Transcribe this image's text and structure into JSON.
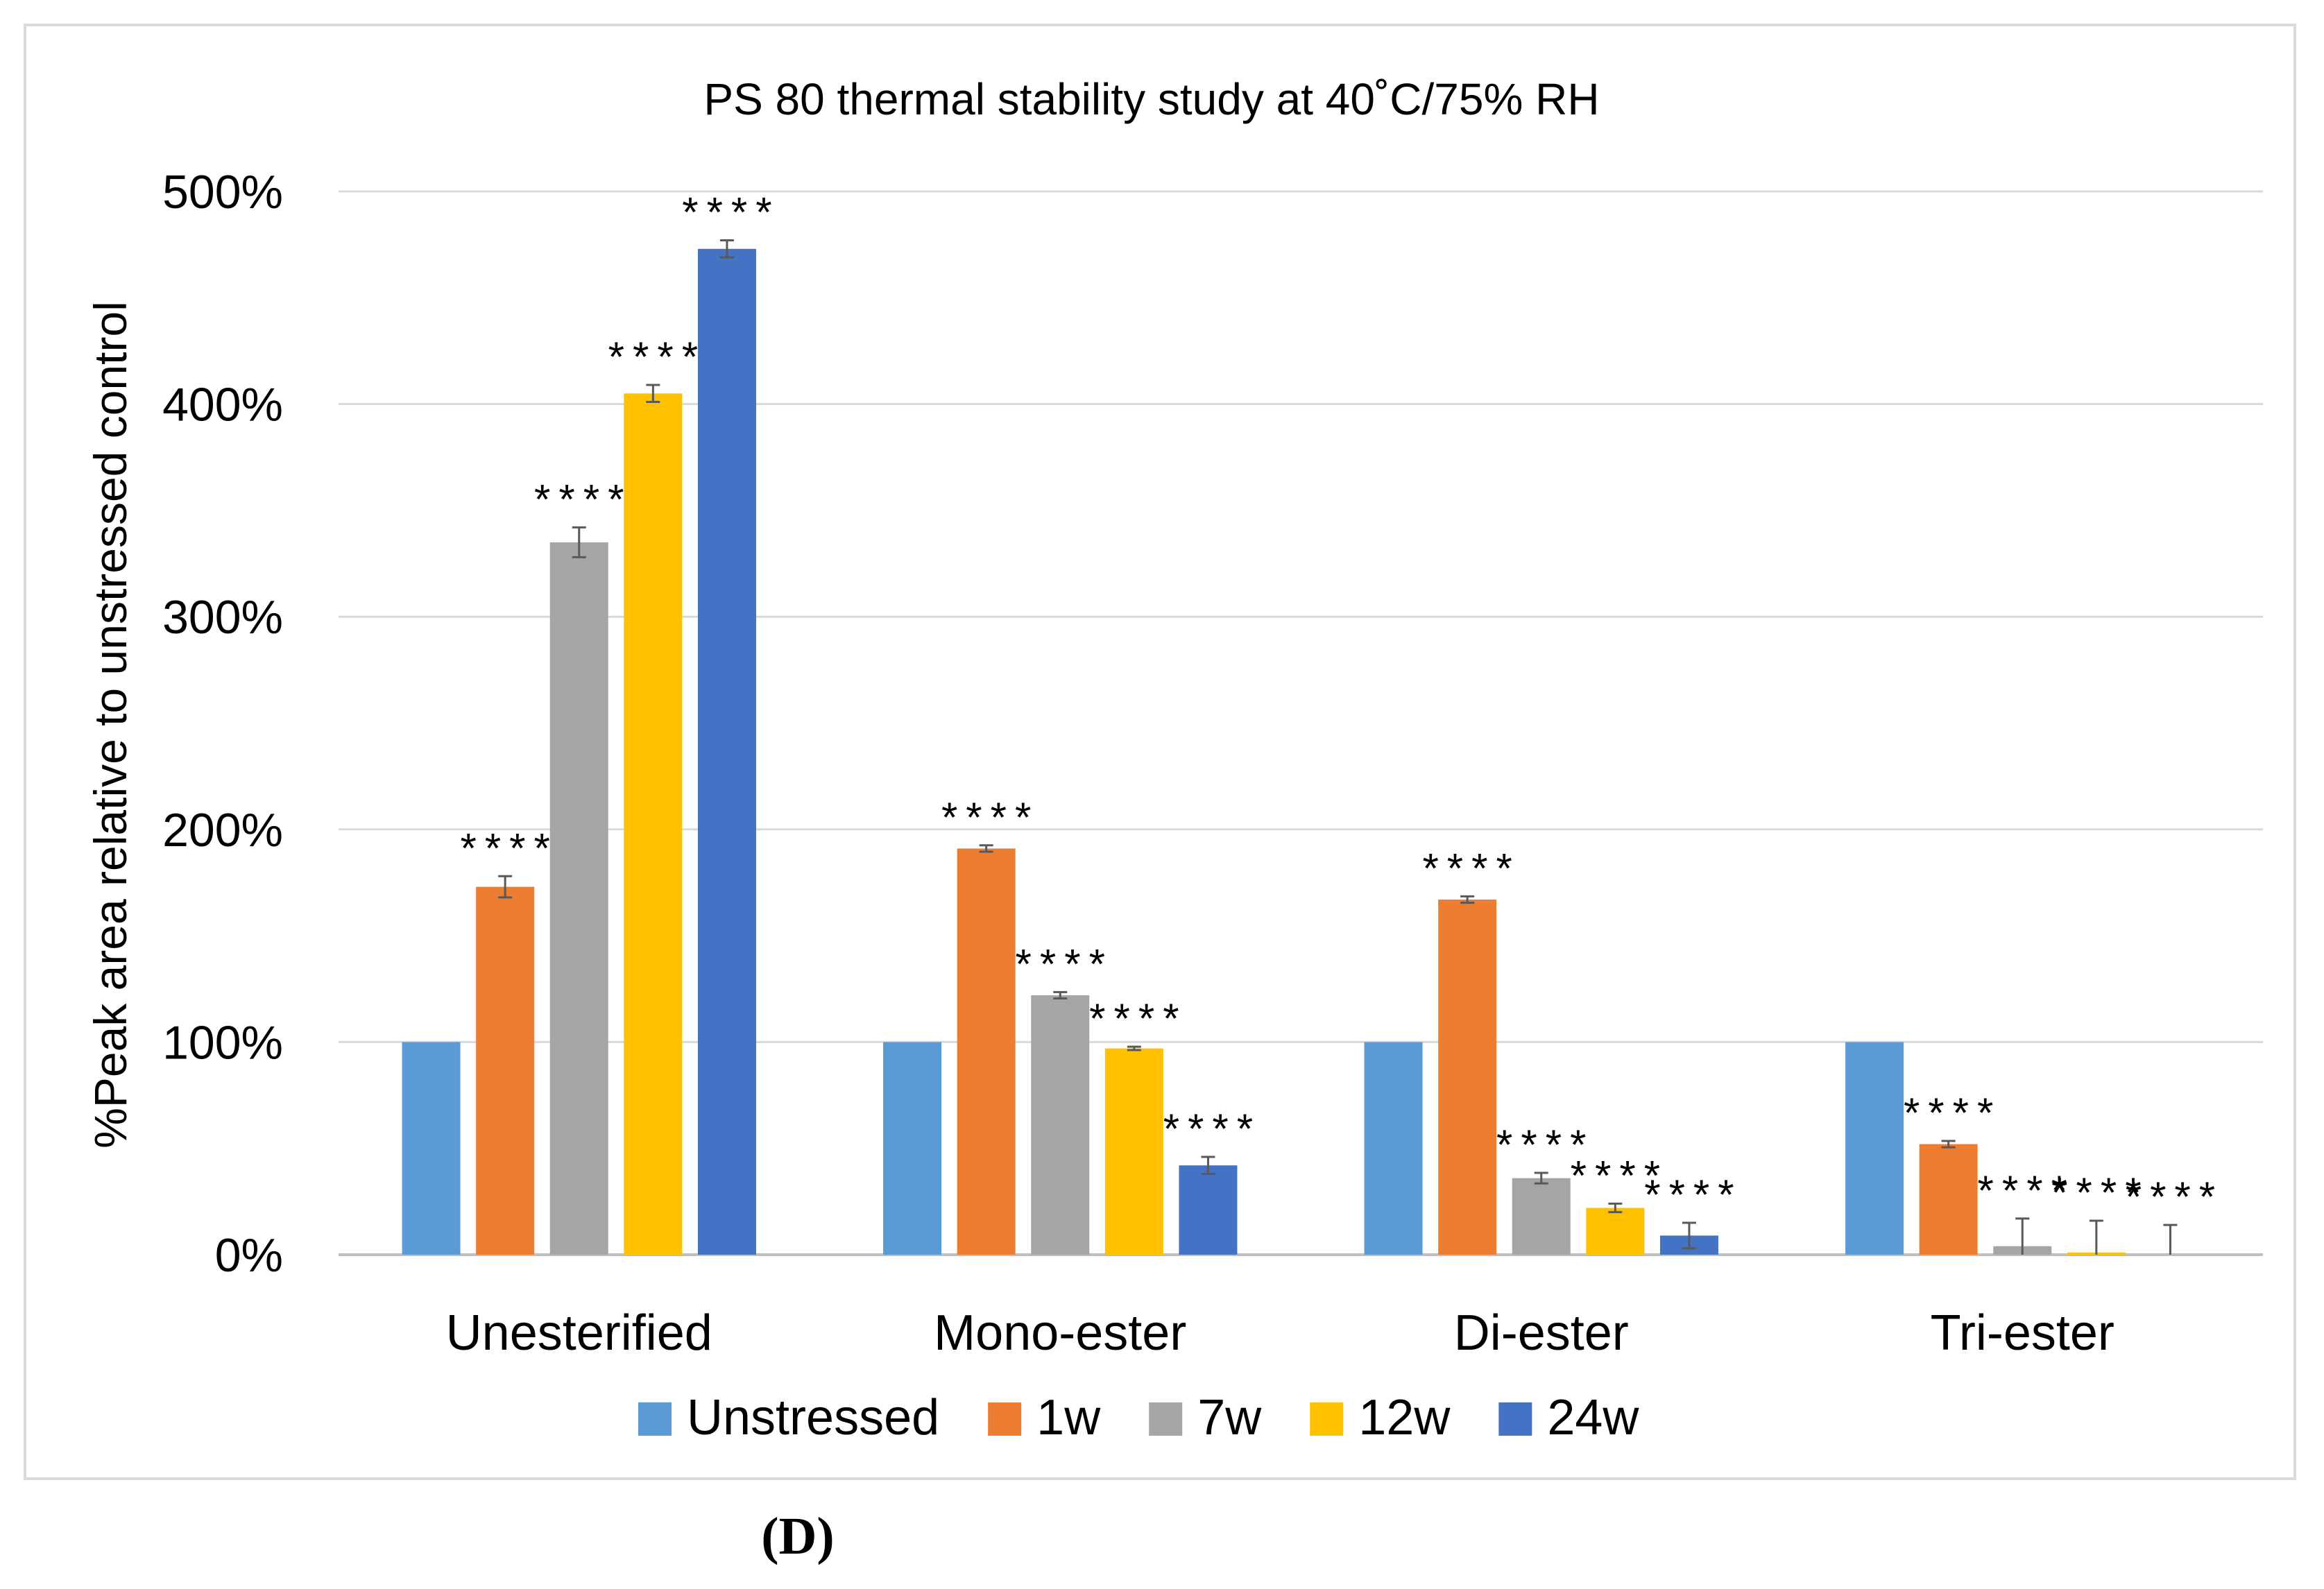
{
  "panel_label": "(D)",
  "chart_data": {
    "type": "bar",
    "title": "PS 80 thermal stability study at 40˚C/75% RH",
    "xlabel": "",
    "ylabel": "%Peak area relative to unstressed control",
    "ylim": [
      0,
      500
    ],
    "yticks": [
      "0%",
      "100%",
      "200%",
      "300%",
      "400%",
      "500%"
    ],
    "grid": true,
    "legend_position": "bottom",
    "categories": [
      "Unesterified",
      "Mono-ester",
      "Di-ester",
      "Tri-ester"
    ],
    "series": [
      {
        "name": "Unstressed",
        "color": "#5b9bd5",
        "values": [
          100,
          100,
          100,
          100
        ],
        "errors": [
          0,
          0,
          0,
          0
        ],
        "annotations": [
          "",
          "",
          "",
          ""
        ]
      },
      {
        "name": "1w",
        "color": "#ed7d31",
        "values": [
          173,
          191,
          167,
          52
        ],
        "errors": [
          5,
          1.5,
          1.5,
          1.5
        ],
        "annotations": [
          "****",
          "****",
          "****",
          "****"
        ]
      },
      {
        "name": "7w",
        "color": "#a5a5a5",
        "values": [
          335,
          122,
          36,
          4
        ],
        "errors": [
          7,
          1.5,
          2.5,
          13
        ],
        "annotations": [
          "****",
          "****",
          "****",
          "****"
        ]
      },
      {
        "name": "12w",
        "color": "#ffc000",
        "values": [
          405,
          97,
          22,
          1
        ],
        "errors": [
          4,
          0.8,
          2,
          15
        ],
        "annotations": [
          "****",
          "****",
          "****",
          "****"
        ]
      },
      {
        "name": "24w",
        "color": "#4472c4",
        "values": [
          473,
          42,
          9,
          0
        ],
        "errors": [
          4,
          4,
          6,
          14
        ],
        "annotations": [
          "****",
          "****",
          "****",
          "****"
        ]
      }
    ]
  }
}
